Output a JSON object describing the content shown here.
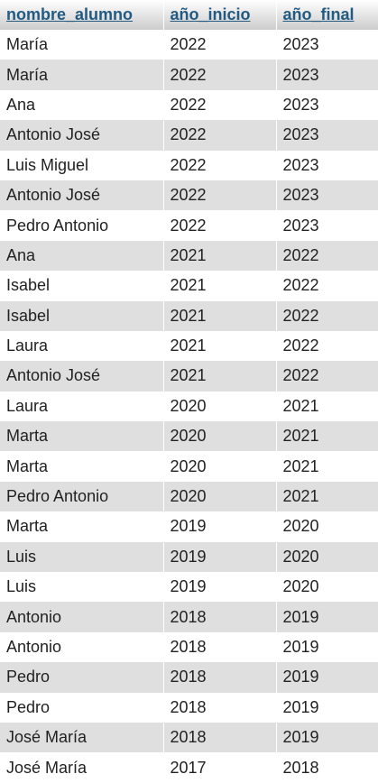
{
  "table": {
    "columns": [
      "nombre_alumno",
      "año_inicio",
      "año_final"
    ],
    "rows": [
      [
        "María",
        "2022",
        "2023"
      ],
      [
        "María",
        "2022",
        "2023"
      ],
      [
        "Ana",
        "2022",
        "2023"
      ],
      [
        "Antonio José",
        "2022",
        "2023"
      ],
      [
        "Luis Miguel",
        "2022",
        "2023"
      ],
      [
        "Antonio José",
        "2022",
        "2023"
      ],
      [
        "Pedro Antonio",
        "2022",
        "2023"
      ],
      [
        "Ana",
        "2021",
        "2022"
      ],
      [
        "Isabel",
        "2021",
        "2022"
      ],
      [
        "Isabel",
        "2021",
        "2022"
      ],
      [
        "Laura",
        "2021",
        "2022"
      ],
      [
        "Antonio José",
        "2021",
        "2022"
      ],
      [
        "Laura",
        "2020",
        "2021"
      ],
      [
        "Marta",
        "2020",
        "2021"
      ],
      [
        "Marta",
        "2020",
        "2021"
      ],
      [
        "Pedro Antonio",
        "2020",
        "2021"
      ],
      [
        "Marta",
        "2019",
        "2020"
      ],
      [
        "Luis",
        "2019",
        "2020"
      ],
      [
        "Luis",
        "2019",
        "2020"
      ],
      [
        "Antonio",
        "2018",
        "2019"
      ],
      [
        "Antonio",
        "2018",
        "2019"
      ],
      [
        "Pedro",
        "2018",
        "2019"
      ],
      [
        "Pedro",
        "2018",
        "2019"
      ],
      [
        "José María",
        "2018",
        "2019"
      ],
      [
        "José María",
        "2017",
        "2018"
      ]
    ]
  }
}
